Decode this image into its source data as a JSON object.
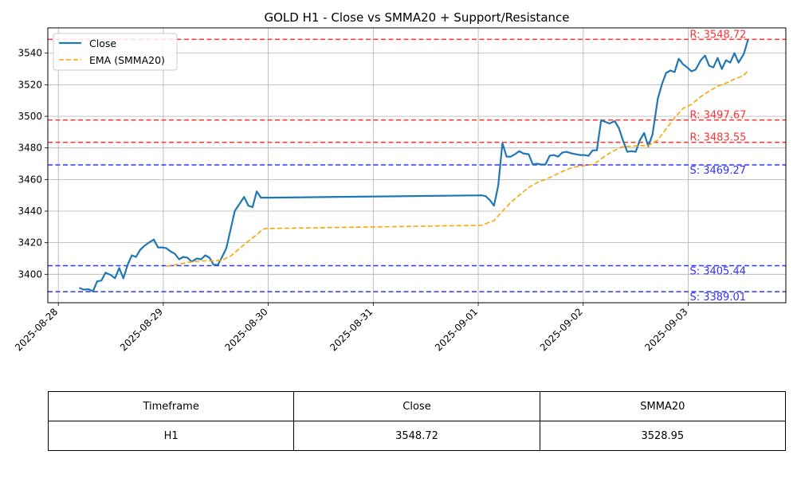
{
  "chart_data": {
    "type": "line",
    "title": "GOLD H1 - Close vs SMMA20 + Support/Resistance",
    "xlabel": "",
    "ylabel": "",
    "xlim": [
      -0.1,
      6.93
    ],
    "ylim": [
      3382.0,
      3556.0
    ],
    "grid": true,
    "legend_placement": "top-left",
    "x_ticks": [
      "2025-08-28",
      "2025-08-29",
      "2025-08-30",
      "2025-08-31",
      "2025-09-01",
      "2025-09-02",
      "2025-09-03"
    ],
    "y_ticks": [
      3400,
      3420,
      3440,
      3460,
      3480,
      3500,
      3520,
      3540
    ],
    "series": [
      {
        "name": "Close",
        "color": "#1f77b4",
        "style": "solid",
        "points": [
          [
            0.2,
            3391.5
          ],
          [
            0.24,
            3390.3
          ],
          [
            0.29,
            3390.5
          ],
          [
            0.33,
            3389.2
          ],
          [
            0.37,
            3395.5
          ],
          [
            0.41,
            3396.0
          ],
          [
            0.45,
            3401.0
          ],
          [
            0.5,
            3399.5
          ],
          [
            0.54,
            3397.5
          ],
          [
            0.58,
            3404.0
          ],
          [
            0.62,
            3397.5
          ],
          [
            0.66,
            3406.0
          ],
          [
            0.7,
            3412.0
          ],
          [
            0.74,
            3411.0
          ],
          [
            0.78,
            3415.5
          ],
          [
            0.82,
            3418.0
          ],
          [
            0.86,
            3420.0
          ],
          [
            0.91,
            3422.0
          ],
          [
            0.95,
            3417.0
          ],
          [
            0.99,
            3417.0
          ],
          [
            1.03,
            3416.5
          ],
          [
            1.07,
            3414.5
          ],
          [
            1.11,
            3413.0
          ],
          [
            1.15,
            3409.5
          ],
          [
            1.19,
            3411.0
          ],
          [
            1.23,
            3410.5
          ],
          [
            1.27,
            3408.0
          ],
          [
            1.32,
            3410.0
          ],
          [
            1.36,
            3409.5
          ],
          [
            1.4,
            3412.0
          ],
          [
            1.44,
            3410.5
          ],
          [
            1.48,
            3406.0
          ],
          [
            1.52,
            3406.0
          ],
          [
            1.56,
            3411.0
          ],
          [
            1.6,
            3416.5
          ],
          [
            1.64,
            3428.0
          ],
          [
            1.68,
            3440.0
          ],
          [
            1.73,
            3445.0
          ],
          [
            1.77,
            3449.0
          ],
          [
            1.81,
            3443.5
          ],
          [
            1.85,
            3442.5
          ],
          [
            1.89,
            3452.5
          ],
          [
            1.93,
            3448.5
          ],
          [
            1.97,
            3448.5
          ],
          [
            2.02,
            3448.5
          ],
          [
            4.03,
            3450.0
          ],
          [
            4.07,
            3449.5
          ],
          [
            4.11,
            3447.0
          ],
          [
            4.15,
            3443.5
          ],
          [
            4.19,
            3456.0
          ],
          [
            4.23,
            3483.0
          ],
          [
            4.27,
            3474.5
          ],
          [
            4.31,
            3474.5
          ],
          [
            4.35,
            3476.0
          ],
          [
            4.39,
            3478.0
          ],
          [
            4.43,
            3476.5
          ],
          [
            4.48,
            3476.0
          ],
          [
            4.52,
            3469.5
          ],
          [
            4.56,
            3470.0
          ],
          [
            4.6,
            3469.5
          ],
          [
            4.64,
            3469.5
          ],
          [
            4.68,
            3475.0
          ],
          [
            4.72,
            3475.5
          ],
          [
            4.76,
            3474.5
          ],
          [
            4.8,
            3477.0
          ],
          [
            4.84,
            3477.5
          ],
          [
            4.89,
            3476.5
          ],
          [
            4.93,
            3476.0
          ],
          [
            4.97,
            3475.5
          ],
          [
            5.01,
            3475.5
          ],
          [
            5.05,
            3475.0
          ],
          [
            5.09,
            3478.5
          ],
          [
            5.13,
            3478.5
          ],
          [
            5.17,
            3497.5
          ],
          [
            5.21,
            3496.5
          ],
          [
            5.25,
            3495.5
          ],
          [
            5.3,
            3497.0
          ],
          [
            5.34,
            3492.5
          ],
          [
            5.38,
            3484.5
          ],
          [
            5.42,
            3477.5
          ],
          [
            5.46,
            3478.0
          ],
          [
            5.5,
            3477.5
          ],
          [
            5.54,
            3485.0
          ],
          [
            5.58,
            3489.5
          ],
          [
            5.62,
            3481.0
          ],
          [
            5.66,
            3488.5
          ],
          [
            5.71,
            3511.0
          ],
          [
            5.75,
            3520.5
          ],
          [
            5.79,
            3527.5
          ],
          [
            5.83,
            3529.0
          ],
          [
            5.87,
            3528.0
          ],
          [
            5.91,
            3536.5
          ],
          [
            5.95,
            3533.0
          ],
          [
            5.99,
            3531.0
          ],
          [
            6.03,
            3528.5
          ],
          [
            6.07,
            3529.5
          ],
          [
            6.12,
            3535.5
          ],
          [
            6.16,
            3538.5
          ],
          [
            6.2,
            3532.0
          ],
          [
            6.24,
            3531.0
          ],
          [
            6.28,
            3537.0
          ],
          [
            6.32,
            3530.0
          ],
          [
            6.36,
            3535.5
          ],
          [
            6.4,
            3534.0
          ],
          [
            6.44,
            3540.0
          ],
          [
            6.48,
            3534.0
          ],
          [
            6.53,
            3539.5
          ],
          [
            6.57,
            3548.7
          ]
        ]
      },
      {
        "name": "EMA (SMMA20)",
        "color": "#ffa500",
        "style": "dashed",
        "points": [
          [
            1.03,
            3405.0
          ],
          [
            1.11,
            3406.0
          ],
          [
            1.23,
            3407.5
          ],
          [
            1.36,
            3408.5
          ],
          [
            1.48,
            3408.5
          ],
          [
            1.56,
            3409.0
          ],
          [
            1.64,
            3411.5
          ],
          [
            1.73,
            3416.5
          ],
          [
            1.81,
            3421.0
          ],
          [
            1.89,
            3425.0
          ],
          [
            1.93,
            3427.5
          ],
          [
            1.97,
            3429.0
          ],
          [
            2.02,
            3429.0
          ],
          [
            4.03,
            3431.0
          ],
          [
            4.15,
            3434.0
          ],
          [
            4.19,
            3437.0
          ],
          [
            4.23,
            3440.0
          ],
          [
            4.31,
            3445.5
          ],
          [
            4.39,
            3450.0
          ],
          [
            4.48,
            3455.0
          ],
          [
            4.56,
            3458.0
          ],
          [
            4.64,
            3460.0
          ],
          [
            4.72,
            3462.5
          ],
          [
            4.8,
            3465.0
          ],
          [
            4.89,
            3467.5
          ],
          [
            4.97,
            3468.5
          ],
          [
            5.09,
            3469.5
          ],
          [
            5.13,
            3471.0
          ],
          [
            5.21,
            3475.0
          ],
          [
            5.3,
            3478.5
          ],
          [
            5.38,
            3481.0
          ],
          [
            5.46,
            3481.0
          ],
          [
            5.54,
            3481.5
          ],
          [
            5.62,
            3481.5
          ],
          [
            5.71,
            3485.0
          ],
          [
            5.79,
            3492.0
          ],
          [
            5.87,
            3499.0
          ],
          [
            5.95,
            3505.0
          ],
          [
            6.03,
            3507.5
          ],
          [
            6.12,
            3512.5
          ],
          [
            6.2,
            3516.0
          ],
          [
            6.28,
            3519.0
          ],
          [
            6.36,
            3521.0
          ],
          [
            6.44,
            3523.5
          ],
          [
            6.53,
            3526.0
          ],
          [
            6.57,
            3529.0
          ]
        ]
      }
    ],
    "levels": [
      {
        "kind": "resistance",
        "value": 3548.72,
        "label": "R: 3548.72",
        "color": "#ff3333"
      },
      {
        "kind": "resistance",
        "value": 3497.67,
        "label": "R: 3497.67",
        "color": "#ff3333"
      },
      {
        "kind": "resistance",
        "value": 3483.55,
        "label": "R: 3483.55",
        "color": "#ff3333"
      },
      {
        "kind": "support",
        "value": 3469.27,
        "label": "S: 3469.27",
        "color": "#3333ff"
      },
      {
        "kind": "support",
        "value": 3405.44,
        "label": "S: 3405.44",
        "color": "#3333ff"
      },
      {
        "kind": "support",
        "value": 3389.01,
        "label": "S: 3389.01",
        "color": "#3333ff"
      }
    ],
    "table": {
      "headers": [
        "Timeframe",
        "Close",
        "SMMA20"
      ],
      "rows": [
        [
          "H1",
          "3548.72",
          "3528.95"
        ]
      ]
    }
  }
}
